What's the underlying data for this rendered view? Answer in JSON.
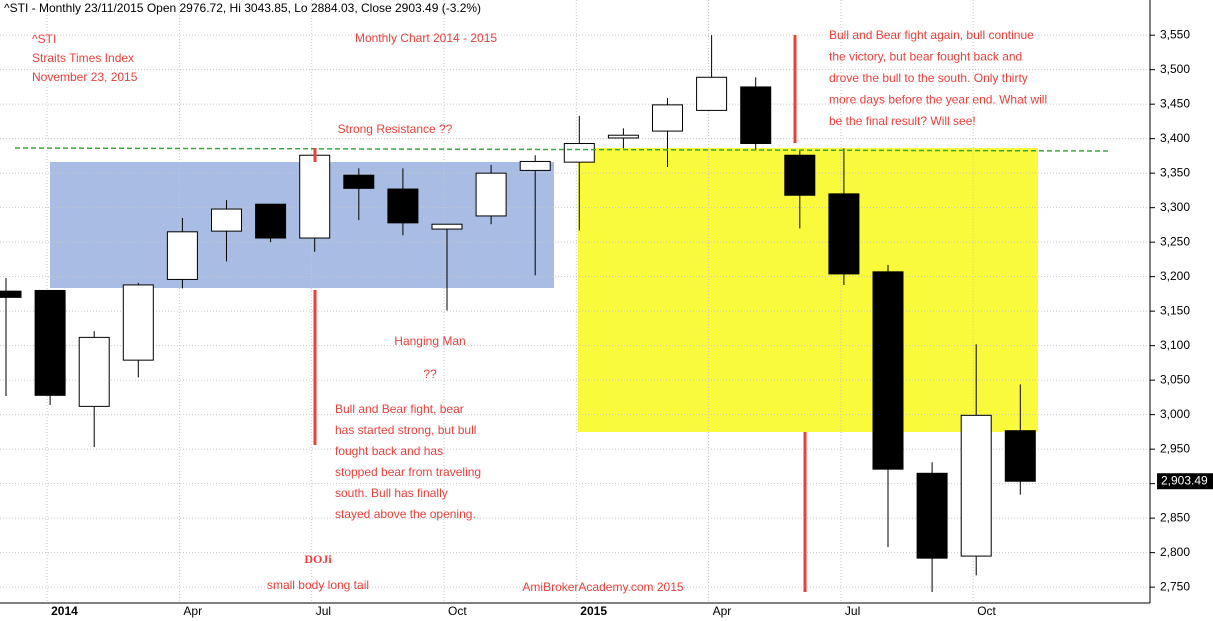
{
  "chart_data": {
    "type": "candlestick",
    "header": "^STI - Monthly 23/11/2015 Open 2976.72, Hi 3043.85, Lo 2884.03, Close 2903.49 (-3.2%)",
    "title": "Monthly Chart 2014 - 2015",
    "annotations": [
      [
        "^STI",
        "Straits Times Index",
        "November 23, 2015"
      ],
      [
        "Strong Resistance ??"
      ],
      [
        "Hanging Man",
        "??"
      ],
      [
        "Bull and Bear fight, bear",
        "has started strong, but bull",
        "fought back and has",
        "stopped bear from traveling",
        "south. Bull has finally",
        "stayed above the opening."
      ],
      [
        "DOJi"
      ],
      [
        "small body long tail"
      ],
      [
        "AmiBrokerAcademy.com 2015"
      ],
      [
        "Bull and Bear fight again, bull continue",
        "the victory, but bear fought back and",
        "drove the bull to the south. Only thirty",
        "more days before the year end. What will",
        "be the final result? Will see!"
      ]
    ],
    "categories": [
      null,
      "2014",
      null,
      null,
      "Apr",
      null,
      null,
      "Jul",
      null,
      null,
      "Oct",
      null,
      null,
      "2015",
      null,
      null,
      "Apr",
      null,
      null,
      "Jul",
      null,
      null,
      "Oct",
      null
    ],
    "open": [
      3179,
      3180,
      3012,
      3079,
      3196,
      3266,
      3305,
      3256,
      3347,
      3327,
      3269,
      3288,
      3354,
      3366,
      3401,
      3411,
      3441,
      3475,
      3376,
      3320,
      3207,
      2915,
      2795,
      2976.72
    ],
    "high": [
      3198,
      3180,
      3121,
      3191,
      3285,
      3311,
      3305,
      3386,
      3357,
      3357,
      3276,
      3362,
      3376,
      3433,
      3415,
      3459,
      3550,
      3489,
      3383,
      3386,
      3217,
      2931,
      3102,
      3043.85
    ],
    "low": [
      3027,
      3014,
      2953,
      3054,
      3183,
      3222,
      3250,
      3236,
      3282,
      3260,
      3151,
      3276,
      3202,
      3267,
      3386,
      3359,
      3441,
      3383,
      3270,
      3188,
      2808,
      2743,
      2767,
      2884.03
    ],
    "close": [
      3170,
      3028,
      3112,
      3188,
      3265,
      3298,
      3256,
      3376,
      3328,
      3278,
      3276,
      3350,
      3367,
      3393,
      3405,
      3449,
      3489,
      3393,
      3318,
      3204,
      2921,
      2792,
      2999,
      2903.49
    ],
    "ylim": [
      2727,
      3601
    ],
    "yticks": [
      {
        "value": 2750,
        "label": "2,750"
      },
      {
        "value": 2800,
        "label": "2,800"
      },
      {
        "value": 2850,
        "label": "2,850"
      },
      {
        "value": 2900,
        "label": "2,900"
      },
      {
        "value": 2950,
        "label": "2,950"
      },
      {
        "value": 3000,
        "label": "3,000"
      },
      {
        "value": 3050,
        "label": "3,050"
      },
      {
        "value": 3100,
        "label": "3,100"
      },
      {
        "value": 3150,
        "label": "3,150"
      },
      {
        "value": 3200,
        "label": "3,200"
      },
      {
        "value": 3250,
        "label": "3,250"
      },
      {
        "value": 3300,
        "label": "3,300"
      },
      {
        "value": 3350,
        "label": "3,350"
      },
      {
        "value": 3400,
        "label": "3,400"
      },
      {
        "value": 3450,
        "label": "3,450"
      },
      {
        "value": 3500,
        "label": "3,500"
      },
      {
        "value": 3550,
        "label": "3,550"
      }
    ],
    "last_price": {
      "value": 2903.49,
      "label": "2,903.49"
    },
    "grid": true,
    "up_color": "#ffffff",
    "down_color": "#000000",
    "annotation_color": "#e8413c"
  }
}
